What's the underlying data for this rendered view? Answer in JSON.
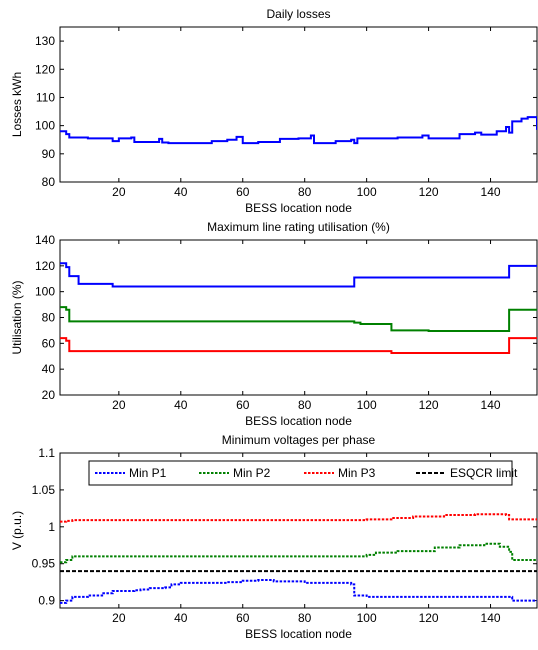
{
  "chart_data": [
    {
      "type": "line",
      "title": "Daily losses",
      "xlabel": "BESS location node",
      "ylabel": "Losses kWh",
      "xlim": [
        1,
        155
      ],
      "ylim": [
        80,
        135
      ],
      "xticks": [
        20,
        40,
        60,
        80,
        100,
        120,
        140
      ],
      "yticks": [
        80,
        90,
        100,
        110,
        120,
        130
      ],
      "grid": false,
      "step": true,
      "series": [
        {
          "color": "#0000ff",
          "points": [
            [
              1,
              98
            ],
            [
              3,
              97
            ],
            [
              4,
              95.8
            ],
            [
              10,
              95.5
            ],
            [
              18,
              94.5
            ],
            [
              20,
              95.5
            ],
            [
              24,
              95.8
            ],
            [
              25,
              94.2
            ],
            [
              33,
              95.3
            ],
            [
              34,
              94
            ],
            [
              36,
              93.8
            ],
            [
              50,
              94.5
            ],
            [
              55,
              95
            ],
            [
              58,
              96
            ],
            [
              60,
              93.8
            ],
            [
              65,
              94.2
            ],
            [
              72,
              95.3
            ],
            [
              78,
              95.5
            ],
            [
              82,
              96.5
            ],
            [
              83,
              93.8
            ],
            [
              90,
              94.5
            ],
            [
              95,
              95
            ],
            [
              96,
              93.8
            ],
            [
              97,
              95.5
            ],
            [
              110,
              95.8
            ],
            [
              118,
              96.5
            ],
            [
              120,
              95.5
            ],
            [
              130,
              97
            ],
            [
              135,
              97.5
            ],
            [
              137,
              96.8
            ],
            [
              142,
              98
            ],
            [
              145,
              99.5
            ],
            [
              146,
              97.5
            ],
            [
              147,
              101.5
            ],
            [
              150,
              102.5
            ],
            [
              152,
              103
            ],
            [
              154,
              103
            ],
            [
              155,
              98.5
            ]
          ]
        }
      ]
    },
    {
      "type": "line",
      "title": "Maximum line rating utilisation (%)",
      "xlabel": "BESS location node",
      "ylabel": "Utilisation (%)",
      "xlim": [
        1,
        155
      ],
      "ylim": [
        20,
        140
      ],
      "xticks": [
        20,
        40,
        60,
        80,
        100,
        120,
        140
      ],
      "yticks": [
        20,
        40,
        60,
        80,
        100,
        120,
        140
      ],
      "grid": false,
      "step": true,
      "series": [
        {
          "color": "#0000ff",
          "points": [
            [
              1,
              122
            ],
            [
              3,
              119
            ],
            [
              4,
              112
            ],
            [
              7,
              106
            ],
            [
              18,
              104
            ],
            [
              96,
              104
            ],
            [
              96,
              111
            ],
            [
              146,
              111
            ],
            [
              146,
              120
            ],
            [
              155,
              120
            ]
          ]
        },
        {
          "color": "#008000",
          "points": [
            [
              1,
              88
            ],
            [
              3,
              86
            ],
            [
              4,
              77
            ],
            [
              96,
              76
            ],
            [
              98,
              75
            ],
            [
              108,
              75
            ],
            [
              108,
              70
            ],
            [
              120,
              69.5
            ],
            [
              146,
              69.5
            ],
            [
              146,
              86
            ],
            [
              155,
              86
            ]
          ]
        },
        {
          "color": "#ff0000",
          "points": [
            [
              1,
              64
            ],
            [
              3,
              62
            ],
            [
              4,
              54
            ],
            [
              108,
              54
            ],
            [
              108,
              52.5
            ],
            [
              146,
              52.5
            ],
            [
              146,
              64
            ],
            [
              155,
              64
            ]
          ]
        }
      ]
    },
    {
      "type": "line",
      "title": "Minimum voltages per phase",
      "xlabel": "BESS location node",
      "ylabel": "V (p.u.)",
      "xlim": [
        1,
        155
      ],
      "ylim": [
        0.89,
        1.1
      ],
      "xticks": [
        20,
        40,
        60,
        80,
        100,
        120,
        140
      ],
      "yticks": [
        0.9,
        0.95,
        1,
        1.05,
        1.1
      ],
      "ytick_labels": [
        "0.9",
        "0.95",
        "1",
        "1.05",
        "1.1"
      ],
      "grid": false,
      "step": true,
      "legend": "top",
      "series": [
        {
          "name": "Min P1",
          "color": "#0000ff",
          "dash": "dotted",
          "points": [
            [
              1,
              0.897
            ],
            [
              3,
              0.9
            ],
            [
              5,
              0.905
            ],
            [
              10,
              0.907
            ],
            [
              15,
              0.91
            ],
            [
              18,
              0.913
            ],
            [
              25,
              0.914
            ],
            [
              27,
              0.915
            ],
            [
              30,
              0.917
            ],
            [
              35,
              0.918
            ],
            [
              37,
              0.922
            ],
            [
              40,
              0.924
            ],
            [
              55,
              0.925
            ],
            [
              60,
              0.927
            ],
            [
              65,
              0.928
            ],
            [
              70,
              0.926
            ],
            [
              80,
              0.924
            ],
            [
              95,
              0.922
            ],
            [
              96,
              0.907
            ],
            [
              100,
              0.905
            ],
            [
              146,
              0.905
            ],
            [
              147,
              0.9
            ],
            [
              155,
              0.9
            ]
          ]
        },
        {
          "name": "Min P2",
          "color": "#008000",
          "dash": "dotted",
          "points": [
            [
              1,
              0.952
            ],
            [
              3,
              0.955
            ],
            [
              5,
              0.96
            ],
            [
              96,
              0.96
            ],
            [
              100,
              0.962
            ],
            [
              103,
              0.965
            ],
            [
              110,
              0.967
            ],
            [
              122,
              0.972
            ],
            [
              130,
              0.975
            ],
            [
              138,
              0.977
            ],
            [
              143,
              0.973
            ],
            [
              146,
              0.966
            ],
            [
              147,
              0.955
            ],
            [
              155,
              0.955
            ]
          ]
        },
        {
          "name": "Min P3",
          "color": "#ff0000",
          "dash": "dotted",
          "points": [
            [
              1,
              1.007
            ],
            [
              3,
              1.008
            ],
            [
              5,
              1.009
            ],
            [
              96,
              1.009
            ],
            [
              100,
              1.01
            ],
            [
              108,
              1.012
            ],
            [
              115,
              1.014
            ],
            [
              125,
              1.016
            ],
            [
              135,
              1.017
            ],
            [
              145,
              1.016
            ],
            [
              146,
              1.01
            ],
            [
              155,
              1.009
            ]
          ]
        },
        {
          "name": "ESQCR limit",
          "color": "#000000",
          "dash": "dashed",
          "points": [
            [
              1,
              0.94
            ],
            [
              155,
              0.94
            ]
          ]
        }
      ]
    }
  ]
}
